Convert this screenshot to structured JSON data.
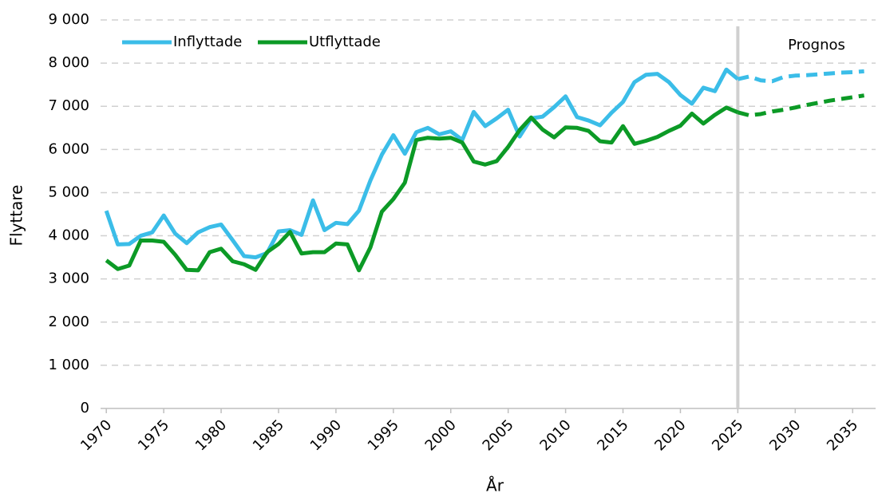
{
  "chart_data": {
    "type": "line",
    "xlabel": "År",
    "ylabel": "Flyttare",
    "annotation": "Prognos",
    "forecast_start": 2025,
    "x": [
      1970,
      1971,
      1972,
      1973,
      1974,
      1975,
      1976,
      1977,
      1978,
      1979,
      1980,
      1981,
      1982,
      1983,
      1984,
      1985,
      1986,
      1987,
      1988,
      1989,
      1990,
      1991,
      1992,
      1993,
      1994,
      1995,
      1996,
      1997,
      1998,
      1999,
      2000,
      2001,
      2002,
      2003,
      2004,
      2005,
      2006,
      2007,
      2008,
      2009,
      2010,
      2011,
      2012,
      2013,
      2014,
      2015,
      2016,
      2017,
      2018,
      2019,
      2020,
      2021,
      2022,
      2023,
      2024,
      2025,
      2026,
      2027,
      2028,
      2029,
      2030,
      2031,
      2032,
      2033,
      2034,
      2035,
      2036
    ],
    "series": [
      {
        "name": "Inflyttade",
        "color": "#3bbde8",
        "values": [
          4580,
          3800,
          3810,
          4000,
          4080,
          4470,
          4050,
          3830,
          4080,
          4200,
          4260,
          3900,
          3530,
          3500,
          3600,
          4100,
          4130,
          4020,
          4820,
          4130,
          4300,
          4270,
          4580,
          5280,
          5880,
          6330,
          5900,
          6400,
          6500,
          6350,
          6420,
          6220,
          6870,
          6540,
          6720,
          6920,
          6300,
          6720,
          6760,
          6980,
          7230,
          6750,
          6670,
          6560,
          6850,
          7100,
          7560,
          7730,
          7750,
          7560,
          7260,
          7060,
          7430,
          7350,
          7850,
          7630,
          7690,
          7600,
          7580,
          7680,
          7710,
          7720,
          7740,
          7760,
          7780,
          7790,
          7810
        ]
      },
      {
        "name": "Utflyttade",
        "color": "#0c9a26",
        "values": [
          3430,
          3230,
          3310,
          3890,
          3890,
          3860,
          3560,
          3210,
          3200,
          3620,
          3700,
          3410,
          3340,
          3210,
          3620,
          3810,
          4090,
          3590,
          3620,
          3620,
          3820,
          3800,
          3200,
          3730,
          4560,
          4850,
          5230,
          6220,
          6270,
          6250,
          6270,
          6160,
          5720,
          5650,
          5730,
          6060,
          6450,
          6740,
          6460,
          6280,
          6510,
          6500,
          6430,
          6190,
          6160,
          6540,
          6130,
          6200,
          6290,
          6430,
          6550,
          6830,
          6600,
          6800,
          6970,
          6860,
          6790,
          6820,
          6880,
          6920,
          6970,
          7030,
          7080,
          7130,
          7170,
          7210,
          7250
        ]
      }
    ],
    "xlim": [
      1969.5,
      2037
    ],
    "xticks": [
      1970,
      1975,
      1980,
      1985,
      1990,
      1995,
      2000,
      2005,
      2010,
      2015,
      2020,
      2025,
      2030,
      2035
    ],
    "ylim": [
      0,
      9000
    ],
    "yticks": [
      0,
      {
        "value": 1000,
        "label": "1 000"
      },
      {
        "value": 2000,
        "label": "2 000"
      },
      {
        "value": 3000,
        "label": "3 000"
      },
      {
        "value": 4000,
        "label": "4 000"
      },
      {
        "value": 5000,
        "label": "5 000"
      },
      {
        "value": 6000,
        "label": "6 000"
      },
      {
        "value": 7000,
        "label": "7 000"
      },
      {
        "value": 8000,
        "label": "8 000"
      },
      {
        "value": 9000,
        "label": "9 000"
      }
    ],
    "grid": true,
    "legend": "top-left"
  }
}
